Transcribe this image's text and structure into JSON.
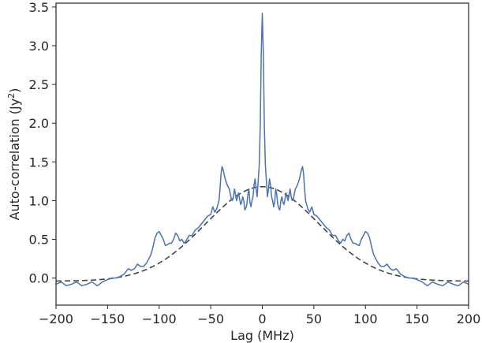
{
  "chart_data": {
    "type": "line",
    "title": "",
    "xlabel": "Lag (MHz)",
    "ylabel_main": "Auto-correlation (Jy",
    "ylabel_sup": "2",
    "ylabel_close": ")",
    "xlim": [
      -200,
      200
    ],
    "ylim": [
      -0.35,
      3.55
    ],
    "xticks": [
      -200,
      -150,
      -100,
      -50,
      0,
      50,
      100,
      150,
      200
    ],
    "xtick_labels": [
      "−200",
      "−150",
      "−100",
      "−50",
      "0",
      "50",
      "100",
      "150",
      "200"
    ],
    "yticks": [
      0.0,
      0.5,
      1.0,
      1.5,
      2.0,
      2.5,
      3.0,
      3.5
    ],
    "ytick_labels": [
      "0.0",
      "0.5",
      "1.0",
      "1.5",
      "2.0",
      "2.5",
      "3.0",
      "3.5"
    ],
    "grid": false,
    "series": [
      {
        "style": "solid",
        "color": "#4c72b0",
        "x": [
          0,
          1,
          2,
          3,
          4,
          5,
          6,
          7,
          8,
          9,
          10,
          11,
          12,
          13,
          14,
          15,
          16,
          17,
          18,
          19,
          20,
          21,
          22,
          23,
          24,
          25,
          26,
          27,
          28,
          29,
          30,
          32,
          34,
          36,
          38,
          39,
          40,
          41,
          42,
          44,
          46,
          48,
          50,
          53,
          56,
          59,
          62,
          65,
          68,
          71,
          74,
          76,
          78,
          80,
          82,
          84,
          86,
          88,
          90,
          92,
          94,
          96,
          98,
          100,
          102,
          104,
          106,
          108,
          110,
          112,
          115,
          118,
          121,
          124,
          127,
          130,
          134,
          138,
          142,
          146,
          150,
          155,
          160,
          165,
          170,
          175,
          180,
          185,
          190,
          195,
          200
        ],
        "y": [
          3.42,
          2.9,
          1.95,
          1.45,
          1.25,
          1.05,
          1.15,
          1.28,
          1.2,
          1.05,
          1.0,
          0.92,
          0.98,
          1.15,
          1.08,
          0.95,
          0.9,
          0.88,
          1.0,
          1.05,
          0.98,
          0.95,
          1.02,
          1.1,
          1.05,
          1.0,
          1.08,
          1.15,
          1.05,
          1.0,
          1.02,
          1.15,
          1.2,
          1.28,
          1.4,
          1.44,
          1.35,
          1.15,
          1.0,
          0.9,
          0.85,
          0.92,
          0.82,
          0.8,
          0.75,
          0.7,
          0.65,
          0.62,
          0.55,
          0.55,
          0.48,
          0.45,
          0.5,
          0.48,
          0.55,
          0.58,
          0.5,
          0.45,
          0.45,
          0.43,
          0.42,
          0.5,
          0.55,
          0.6,
          0.58,
          0.52,
          0.4,
          0.3,
          0.25,
          0.2,
          0.15,
          0.15,
          0.18,
          0.12,
          0.1,
          0.12,
          0.05,
          0.02,
          0.0,
          0.0,
          -0.02,
          -0.05,
          -0.1,
          -0.05,
          -0.08,
          -0.1,
          -0.05,
          -0.08,
          -0.1,
          -0.05,
          -0.08
        ]
      },
      {
        "style": "dashed",
        "color": "#444444",
        "gaussian": {
          "amplitude": 1.22,
          "sigma": 55,
          "offset": -0.04
        }
      }
    ]
  }
}
